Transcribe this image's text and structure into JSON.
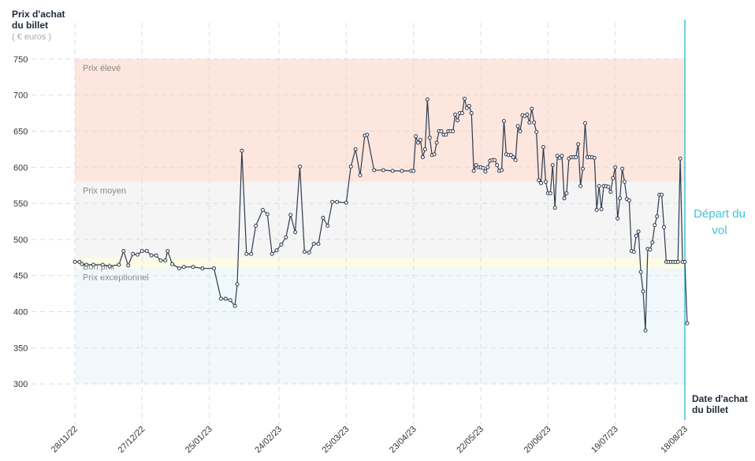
{
  "chart_data": {
    "type": "line",
    "y_title": "Prix d'achat du billet",
    "y_unit": "( € euros )",
    "x_title": "Date d'achat du billet",
    "marker_label": "Départ du vol",
    "marker_date": "18/08/23",
    "marker_color": "#3fc4d8",
    "bands": [
      {
        "label": "Prix élevé",
        "from": 580,
        "to": 750,
        "color": "#fde6de"
      },
      {
        "label": "Prix moyen",
        "from": 475,
        "to": 580,
        "color": "#f5f5f5"
      },
      {
        "label": "Bon prix",
        "from": 460,
        "to": 475,
        "color": "#fbfbe6"
      },
      {
        "label": "Prix exceptionnel",
        "from": 300,
        "to": 460,
        "color": "#f0f8fc"
      }
    ],
    "ylim": [
      250,
      800
    ],
    "yticks": [
      300,
      350,
      400,
      450,
      500,
      550,
      600,
      650,
      700,
      750
    ],
    "grid": true,
    "xlim": [
      "28/11/22",
      "19/08/23"
    ],
    "xticks": [
      "28/11/22",
      "27/12/22",
      "25/01/23",
      "24/02/23",
      "25/03/23",
      "23/04/23",
      "22/05/23",
      "20/06/23",
      "19/07/23",
      "18/08/23"
    ],
    "x": [
      "28/11/22",
      "30/11/22",
      "01/12/22",
      "03/12/22",
      "06/12/22",
      "10/12/22",
      "13/12/22",
      "17/12/22",
      "19/12/22",
      "21/12/22",
      "23/12/22",
      "25/12/22",
      "27/12/22",
      "29/12/22",
      "31/12/22",
      "02/01/23",
      "04/01/23",
      "06/01/23",
      "07/01/23",
      "09/01/23",
      "12/01/23",
      "14/01/23",
      "18/01/23",
      "22/01/23",
      "27/01/23",
      "30/01/23",
      "01/02/23",
      "03/02/23",
      "05/02/23",
      "06/02/23",
      "08/02/23",
      "10/02/23",
      "12/02/23",
      "14/02/23",
      "17/02/23",
      "19/02/23",
      "21/02/23",
      "23/02/23",
      "25/02/23",
      "27/02/23",
      "01/03/23",
      "03/03/23",
      "05/03/23",
      "07/03/23",
      "09/03/23",
      "11/03/23",
      "13/03/23",
      "15/03/23",
      "17/03/23",
      "19/03/23",
      "21/03/23",
      "25/03/23",
      "27/03/23",
      "29/03/23",
      "31/03/23",
      "02/04/23",
      "03/04/23",
      "06/04/23",
      "10/04/23",
      "14/04/23",
      "18/04/23",
      "22/04/23",
      "23/04/23",
      "24/04/23",
      "25/04/23",
      "26/04/23",
      "27/04/23",
      "28/04/23",
      "29/04/23",
      "30/04/23",
      "01/05/23",
      "02/05/23",
      "03/05/23",
      "04/05/23",
      "05/05/23",
      "06/05/23",
      "07/05/23",
      "08/05/23",
      "09/05/23",
      "10/05/23",
      "11/05/23",
      "12/05/23",
      "13/05/23",
      "14/05/23",
      "15/05/23",
      "16/05/23",
      "17/05/23",
      "18/05/23",
      "19/05/23",
      "20/05/23",
      "21/05/23",
      "22/05/23",
      "23/05/23",
      "24/05/23",
      "25/05/23",
      "26/05/23",
      "27/05/23",
      "28/05/23",
      "29/05/23",
      "30/05/23",
      "31/05/23",
      "01/06/23",
      "02/06/23",
      "03/06/23",
      "04/06/23",
      "05/06/23",
      "06/06/23",
      "07/06/23",
      "08/06/23",
      "09/06/23",
      "10/06/23",
      "11/06/23",
      "12/06/23",
      "13/06/23",
      "14/06/23",
      "15/06/23",
      "16/06/23",
      "17/06/23",
      "18/06/23",
      "19/06/23",
      "20/06/23",
      "21/06/23",
      "22/06/23",
      "23/06/23",
      "24/06/23",
      "25/06/23",
      "26/06/23",
      "27/06/23",
      "28/06/23",
      "29/06/23",
      "30/06/23",
      "01/07/23",
      "02/07/23",
      "03/07/23",
      "04/07/23",
      "05/07/23",
      "06/07/23",
      "07/07/23",
      "08/07/23",
      "09/07/23",
      "10/07/23",
      "11/07/23",
      "12/07/23",
      "13/07/23",
      "14/07/23",
      "15/07/23",
      "16/07/23",
      "17/07/23",
      "18/07/23",
      "19/07/23",
      "20/07/23",
      "21/07/23",
      "22/07/23",
      "23/07/23",
      "24/07/23",
      "25/07/23",
      "26/07/23",
      "27/07/23",
      "28/07/23",
      "29/07/23",
      "30/07/23",
      "31/07/23",
      "01/08/23",
      "02/08/23",
      "03/08/23",
      "04/08/23",
      "05/08/23",
      "06/08/23",
      "07/08/23",
      "08/08/23",
      "09/08/23",
      "10/08/23",
      "11/08/23",
      "12/08/23",
      "13/08/23",
      "14/08/23",
      "15/08/23",
      "16/08/23",
      "17/08/23",
      "18/08/23",
      "19/08/23"
    ],
    "series": [
      {
        "color": "#2e3a4f",
        "values": [
          469,
          469,
          466,
          465,
          465,
          465,
          463,
          465,
          484,
          464,
          480,
          479,
          484,
          484,
          478,
          478,
          471,
          471,
          484,
          466,
          460,
          462,
          462,
          460,
          460,
          418,
          418,
          416,
          408,
          438,
          623,
          480,
          480,
          519,
          541,
          535,
          480,
          485,
          493,
          503,
          534,
          510,
          601,
          483,
          482,
          494,
          494,
          530,
          519,
          552,
          552,
          551,
          601,
          625,
          589,
          644,
          645,
          596,
          596,
          595,
          595,
          595,
          595,
          643,
          634,
          638,
          614,
          625,
          694,
          641,
          617,
          618,
          634,
          650,
          650,
          645,
          645,
          650,
          650,
          650,
          673,
          665,
          675,
          675,
          695,
          682,
          685,
          675,
          595,
          603,
          600,
          600,
          599,
          594,
          600,
          609,
          610,
          610,
          603,
          595,
          596,
          664,
          618,
          617,
          617,
          614,
          610,
          657,
          650,
          672,
          671,
          673,
          662,
          681,
          662,
          649,
          582,
          578,
          628,
          580,
          564,
          564,
          603,
          544,
          616,
          613,
          616,
          557,
          564,
          612,
          614,
          614,
          614,
          632,
          574,
          598,
          661,
          614,
          614,
          614,
          613,
          541,
          574,
          542,
          574,
          574,
          573,
          566,
          585,
          600,
          529,
          557,
          598,
          580,
          556,
          554,
          484,
          483,
          505,
          511,
          455,
          428,
          374,
          487,
          486,
          496,
          520,
          532,
          562,
          562,
          517,
          469,
          469,
          469,
          469,
          469,
          469,
          612,
          469,
          469,
          384
        ]
      }
    ]
  }
}
